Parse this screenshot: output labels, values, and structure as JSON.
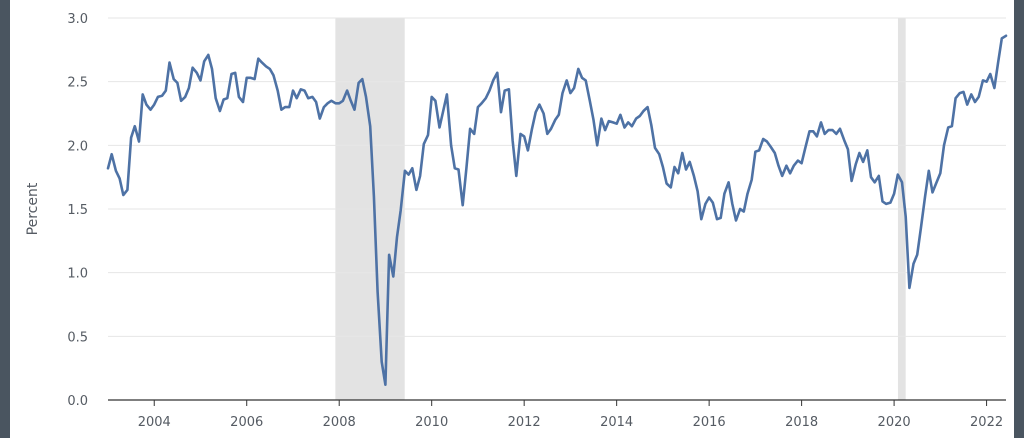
{
  "chart_data": {
    "type": "line",
    "title": "",
    "xlabel": "",
    "ylabel": "Percent",
    "xlim": [
      2003.0,
      2022.42
    ],
    "ylim": [
      0.0,
      3.0
    ],
    "y_ticks": [
      "0.0",
      "0.5",
      "1.0",
      "1.5",
      "2.0",
      "2.5",
      "3.0"
    ],
    "x_ticks": [
      "2004",
      "2006",
      "2008",
      "2010",
      "2012",
      "2014",
      "2016",
      "2018",
      "2020",
      "2022"
    ],
    "grid": "horizontal",
    "legend": "none",
    "colors": {
      "line": "#4e72a5",
      "recession": "#e3e3e3",
      "grid": "#e6e6e6",
      "axis": "#333333",
      "frame": "#4a5560"
    },
    "recessions": [
      {
        "start": "2007-12",
        "end": "2009-06"
      },
      {
        "start": "2020-02",
        "end": "2020-04"
      }
    ],
    "series": [
      {
        "x": [
          2003.0,
          2003.08,
          2003.17,
          2003.25,
          2003.33,
          2003.42,
          2003.5,
          2003.58,
          2003.67,
          2003.75,
          2003.83,
          2003.92,
          2004.0,
          2004.08,
          2004.17,
          2004.25,
          2004.33,
          2004.42,
          2004.5,
          2004.58,
          2004.67,
          2004.75,
          2004.83,
          2004.92,
          2005.0,
          2005.08,
          2005.17,
          2005.25,
          2005.33,
          2005.42,
          2005.5,
          2005.58,
          2005.67,
          2005.75,
          2005.83,
          2005.92,
          2006.0,
          2006.08,
          2006.17,
          2006.25,
          2006.33,
          2006.42,
          2006.5,
          2006.58,
          2006.67,
          2006.75,
          2006.83,
          2006.92,
          2007.0,
          2007.08,
          2007.17,
          2007.25,
          2007.33,
          2007.42,
          2007.5,
          2007.58,
          2007.67,
          2007.75,
          2007.83,
          2007.92,
          2008.0,
          2008.08,
          2008.17,
          2008.25,
          2008.33,
          2008.42,
          2008.5,
          2008.58,
          2008.67,
          2008.75,
          2008.83,
          2008.92,
          2009.0,
          2009.08,
          2009.17,
          2009.25,
          2009.33,
          2009.42,
          2009.5,
          2009.58,
          2009.67,
          2009.75,
          2009.83,
          2009.92,
          2010.0,
          2010.08,
          2010.17,
          2010.25,
          2010.33,
          2010.42,
          2010.5,
          2010.58,
          2010.67,
          2010.75,
          2010.83,
          2010.92,
          2011.0,
          2011.08,
          2011.17,
          2011.25,
          2011.33,
          2011.42,
          2011.5,
          2011.58,
          2011.67,
          2011.75,
          2011.83,
          2011.92,
          2012.0,
          2012.08,
          2012.17,
          2012.25,
          2012.33,
          2012.42,
          2012.5,
          2012.58,
          2012.67,
          2012.75,
          2012.83,
          2012.92,
          2013.0,
          2013.08,
          2013.17,
          2013.25,
          2013.33,
          2013.42,
          2013.5,
          2013.58,
          2013.67,
          2013.75,
          2013.83,
          2013.92,
          2014.0,
          2014.08,
          2014.17,
          2014.25,
          2014.33,
          2014.42,
          2014.5,
          2014.58,
          2014.67,
          2014.75,
          2014.83,
          2014.92,
          2015.0,
          2015.08,
          2015.17,
          2015.25,
          2015.33,
          2015.42,
          2015.5,
          2015.58,
          2015.67,
          2015.75,
          2015.83,
          2015.92,
          2016.0,
          2016.08,
          2016.17,
          2016.25,
          2016.33,
          2016.42,
          2016.5,
          2016.58,
          2016.67,
          2016.75,
          2016.83,
          2016.92,
          2017.0,
          2017.08,
          2017.17,
          2017.25,
          2017.33,
          2017.42,
          2017.5,
          2017.58,
          2017.67,
          2017.75,
          2017.83,
          2017.92,
          2018.0,
          2018.08,
          2018.17,
          2018.25,
          2018.33,
          2018.42,
          2018.5,
          2018.58,
          2018.67,
          2018.75,
          2018.83,
          2018.92,
          2019.0,
          2019.08,
          2019.17,
          2019.25,
          2019.33,
          2019.42,
          2019.5,
          2019.58,
          2019.67,
          2019.75,
          2019.83,
          2019.92,
          2020.0,
          2020.08,
          2020.17,
          2020.25,
          2020.33,
          2020.42,
          2020.5,
          2020.58,
          2020.67,
          2020.75,
          2020.83,
          2020.92,
          2021.0,
          2021.08,
          2021.17,
          2021.25,
          2021.33,
          2021.42,
          2021.5,
          2021.58,
          2021.67,
          2021.75,
          2021.83,
          2021.92,
          2022.0,
          2022.08,
          2022.17,
          2022.25,
          2022.33,
          2022.42
        ],
        "y": [
          1.82,
          1.93,
          1.8,
          1.74,
          1.61,
          1.65,
          2.06,
          2.15,
          2.03,
          2.4,
          2.32,
          2.28,
          2.32,
          2.38,
          2.39,
          2.43,
          2.65,
          2.52,
          2.49,
          2.35,
          2.38,
          2.45,
          2.61,
          2.57,
          2.51,
          2.66,
          2.71,
          2.6,
          2.37,
          2.27,
          2.36,
          2.37,
          2.56,
          2.57,
          2.38,
          2.34,
          2.53,
          2.53,
          2.52,
          2.68,
          2.65,
          2.62,
          2.6,
          2.55,
          2.43,
          2.28,
          2.3,
          2.3,
          2.43,
          2.37,
          2.44,
          2.43,
          2.37,
          2.38,
          2.34,
          2.21,
          2.3,
          2.33,
          2.35,
          2.33,
          2.33,
          2.35,
          2.43,
          2.35,
          2.28,
          2.49,
          2.52,
          2.38,
          2.15,
          1.6,
          0.85,
          0.3,
          0.12,
          1.14,
          0.97,
          1.28,
          1.49,
          1.8,
          1.77,
          1.82,
          1.65,
          1.76,
          2.01,
          2.08,
          2.38,
          2.35,
          2.14,
          2.27,
          2.4,
          2.0,
          1.82,
          1.81,
          1.53,
          1.82,
          2.13,
          2.09,
          2.3,
          2.33,
          2.37,
          2.43,
          2.51,
          2.57,
          2.26,
          2.43,
          2.44,
          2.04,
          1.76,
          2.09,
          2.07,
          1.96,
          2.13,
          2.26,
          2.32,
          2.25,
          2.09,
          2.13,
          2.2,
          2.24,
          2.41,
          2.51,
          2.41,
          2.45,
          2.6,
          2.53,
          2.51,
          2.35,
          2.2,
          2.0,
          2.21,
          2.12,
          2.19,
          2.18,
          2.17,
          2.24,
          2.14,
          2.18,
          2.15,
          2.21,
          2.23,
          2.27,
          2.3,
          2.16,
          1.98,
          1.93,
          1.83,
          1.7,
          1.67,
          1.83,
          1.78,
          1.94,
          1.81,
          1.87,
          1.76,
          1.64,
          1.42,
          1.54,
          1.59,
          1.55,
          1.42,
          1.43,
          1.62,
          1.71,
          1.54,
          1.41,
          1.5,
          1.48,
          1.62,
          1.73,
          1.95,
          1.96,
          2.05,
          2.03,
          1.99,
          1.94,
          1.84,
          1.76,
          1.84,
          1.78,
          1.84,
          1.88,
          1.86,
          1.98,
          2.11,
          2.11,
          2.07,
          2.18,
          2.09,
          2.12,
          2.12,
          2.09,
          2.13,
          2.04,
          1.97,
          1.72,
          1.85,
          1.94,
          1.87,
          1.96,
          1.75,
          1.71,
          1.76,
          1.56,
          1.54,
          1.55,
          1.62,
          1.77,
          1.71,
          1.44,
          0.88,
          1.07,
          1.14,
          1.35,
          1.6,
          1.8,
          1.63,
          1.71,
          1.78,
          2.0,
          2.14,
          2.15,
          2.37,
          2.41,
          2.42,
          2.32,
          2.4,
          2.34,
          2.38,
          2.51,
          2.5,
          2.56,
          2.45,
          2.65,
          2.84,
          2.86
        ]
      }
    ]
  }
}
